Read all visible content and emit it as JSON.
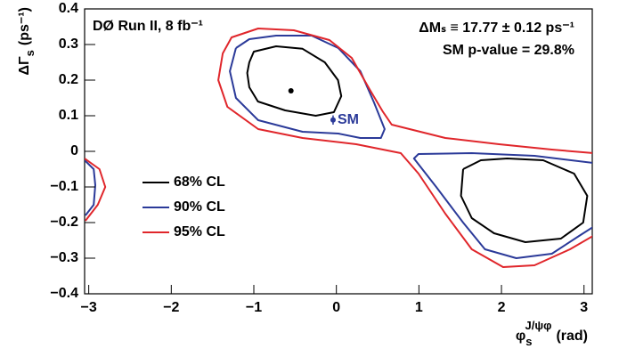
{
  "chart_data": {
    "type": "contour",
    "title": "DØ Run II, 8 fb⁻¹",
    "annotations": [
      "ΔMₛ ≡ 17.77 ± 0.12 ps⁻¹",
      "SM p-value = 29.8%"
    ],
    "x_label": {
      "symbol": "φ",
      "sub": "s",
      "sup": "J/ψφ",
      "unit": "(rad)"
    },
    "y_label": {
      "symbol": "ΔΓ",
      "sub": "s",
      "unit": "(ps⁻¹)"
    },
    "xlim": [
      -3.05,
      3.1
    ],
    "ylim": [
      -0.4,
      0.4
    ],
    "xticks": [
      {
        "value": -3,
        "label": "−3"
      },
      {
        "value": -2,
        "label": "−2"
      },
      {
        "value": -1,
        "label": "−1"
      },
      0,
      1,
      2,
      3
    ],
    "yticks": [
      {
        "value": -0.4,
        "label": "−0.4"
      },
      {
        "value": -0.3,
        "label": "−0.3"
      },
      {
        "value": -0.2,
        "label": "−0.2"
      },
      {
        "value": -0.1,
        "label": "−0.1"
      },
      0,
      0.1,
      0.2,
      0.3,
      0.4
    ],
    "series": [
      {
        "name": "68% CL",
        "color": "#000000",
        "x": [
          -1.055,
          -1.0,
          -0.73,
          -0.41,
          -0.14,
          0.02,
          0.06,
          -0.03,
          -0.25,
          -0.62,
          -0.95,
          -1.055,
          -1.08,
          -1.055,
          null,
          1.535,
          1.75,
          2.07,
          2.505,
          2.88,
          3.04,
          2.99,
          2.72,
          2.29,
          1.91,
          1.64,
          1.51,
          1.535
        ],
        "y": [
          0.25,
          0.28,
          0.295,
          0.288,
          0.25,
          0.2,
          0.155,
          0.11,
          0.1,
          0.115,
          0.14,
          0.18,
          0.22,
          0.25,
          null,
          -0.05,
          -0.025,
          -0.02,
          -0.025,
          -0.0625,
          -0.125,
          -0.2,
          -0.245,
          -0.255,
          -0.23,
          -0.1875,
          -0.125,
          -0.05
        ]
      },
      {
        "name": "90% CL",
        "color": "#2b3a99",
        "x": [
          -1.217,
          -1.055,
          -0.73,
          -0.3,
          0.024,
          0.29,
          0.455,
          0.585,
          0.54,
          0.29,
          0.024,
          -0.41,
          -0.947,
          -1.217,
          -1.29,
          -1.217,
          null,
          3.11,
          2.4,
          1.64,
          0.995,
          0.94,
          1.21,
          1.535,
          1.8,
          2.18,
          2.61,
          2.94,
          3.11,
          null,
          -3.05,
          -2.94,
          -2.92,
          -2.94,
          -3.04
        ],
        "y": [
          0.29,
          0.315,
          0.325,
          0.325,
          0.29,
          0.225,
          0.1375,
          0.0625,
          0.0375,
          0.0375,
          0.05,
          0.055,
          0.0875,
          0.15,
          0.225,
          0.29,
          null,
          -0.0325,
          -0.0125,
          -0.005,
          -0.0075,
          -0.02,
          -0.1,
          -0.2,
          -0.275,
          -0.3,
          -0.2875,
          -0.2375,
          -0.2125,
          null,
          -0.025,
          -0.05,
          -0.095,
          -0.15,
          -0.18
        ]
      },
      {
        "name": "95% CL",
        "color": "#e0262b",
        "x": [
          3.11,
          2.61,
          1.97,
          1.32,
          0.67,
          0.56,
          0.4,
          0.186,
          -0.084,
          -0.516,
          -0.947,
          -1.27,
          -1.377,
          -1.43,
          -1.32,
          -0.947,
          -0.41,
          0.24,
          0.78,
          0.995,
          1.32,
          1.64,
          2.02,
          2.4,
          2.83,
          3.11,
          null,
          -3.05,
          -2.87,
          -2.8,
          -2.89,
          -3.04
        ],
        "y": [
          -0.005,
          0.005,
          0.02,
          0.0375,
          0.075,
          0.1125,
          0.175,
          0.2625,
          0.3125,
          0.34,
          0.345,
          0.32,
          0.275,
          0.2,
          0.125,
          0.0625,
          0.0375,
          0.02,
          -0.005,
          -0.0625,
          -0.175,
          -0.275,
          -0.325,
          -0.32,
          -0.275,
          -0.2375,
          null,
          -0.02,
          -0.05,
          -0.1,
          -0.15,
          -0.195
        ]
      }
    ],
    "best_fit": {
      "x": -0.55,
      "y": 0.17
    },
    "sm": {
      "label": "SM",
      "x": -0.04,
      "y": 0.088,
      "yerr": 0.013
    }
  }
}
